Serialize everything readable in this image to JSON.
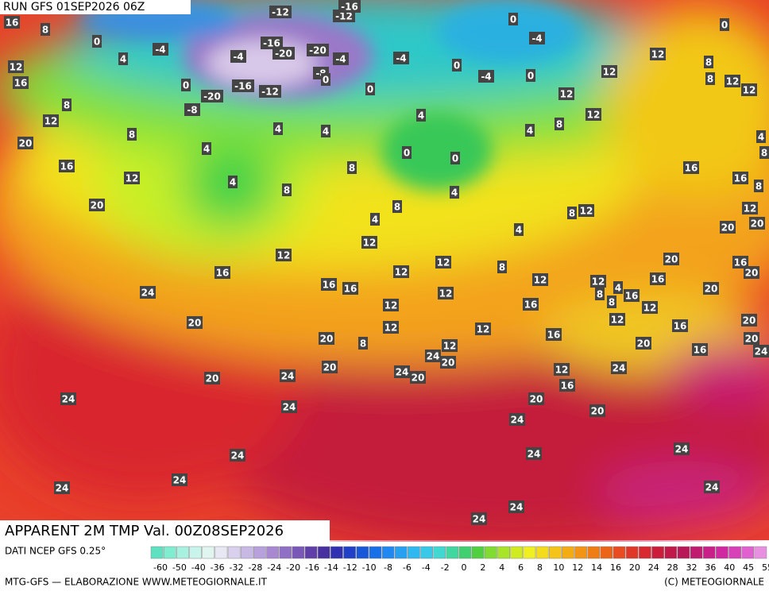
{
  "header": {
    "run": "RUN GFS 01SEP2026 06Z",
    "title": "APPARENT 2M TMP Val. 00Z08SEP2026"
  },
  "footer": {
    "source": "DATI NCEP GFS 0.25°",
    "credit": "MTG-GFS — ELABORAZIONE WWW.METEOGIORNALE.IT",
    "copyright": "(C) METEOGIORNALE"
  },
  "colorbar": {
    "labels": [
      -60,
      -50,
      -40,
      -36,
      -32,
      -28,
      -24,
      -20,
      -16,
      -14,
      -12,
      -10,
      -8,
      -6,
      -4,
      -2,
      0,
      2,
      4,
      6,
      8,
      10,
      12,
      14,
      16,
      20,
      24,
      28,
      32,
      36,
      40,
      45,
      55
    ]
  },
  "map_labels": {
    "values": [
      16,
      8,
      0,
      4,
      -4,
      12,
      16,
      8,
      12,
      20,
      16,
      8,
      12,
      20,
      4,
      4,
      4,
      4,
      8,
      8,
      0,
      -8,
      -20,
      -16,
      -12,
      -4,
      -16,
      -20,
      -12,
      -12,
      -16,
      -20,
      -4,
      -8,
      0,
      0,
      -4,
      0,
      -4,
      0,
      -4,
      0,
      12,
      12,
      12,
      12,
      8,
      4,
      4,
      0,
      0,
      4,
      8,
      4,
      12,
      12,
      16,
      24,
      20,
      16,
      16,
      12,
      12,
      8,
      4,
      8,
      12,
      12,
      12,
      4,
      8,
      8,
      16,
      16,
      12,
      12,
      16,
      12,
      12,
      12,
      8,
      20,
      16,
      12,
      12,
      24,
      20,
      20,
      16,
      16,
      20,
      20,
      20,
      24,
      16,
      20,
      20,
      20,
      20,
      12,
      16,
      16,
      8,
      8,
      8,
      12,
      12,
      0,
      4,
      8,
      20,
      24,
      24,
      20,
      12,
      24,
      16,
      20,
      20,
      24,
      24,
      24,
      20,
      24,
      24,
      24,
      24,
      24,
      24,
      24,
      24
    ]
  }
}
